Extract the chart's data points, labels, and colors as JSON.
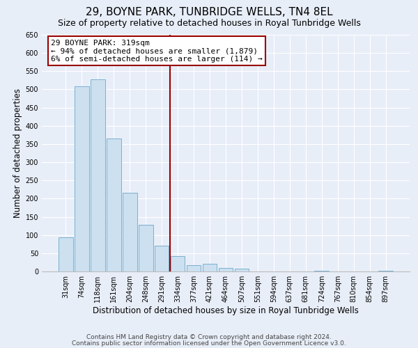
{
  "title": "29, BOYNE PARK, TUNBRIDGE WELLS, TN4 8EL",
  "subtitle": "Size of property relative to detached houses in Royal Tunbridge Wells",
  "xlabel": "Distribution of detached houses by size in Royal Tunbridge Wells",
  "ylabel": "Number of detached properties",
  "bar_labels": [
    "31sqm",
    "74sqm",
    "118sqm",
    "161sqm",
    "204sqm",
    "248sqm",
    "291sqm",
    "334sqm",
    "377sqm",
    "421sqm",
    "464sqm",
    "507sqm",
    "551sqm",
    "594sqm",
    "637sqm",
    "681sqm",
    "724sqm",
    "767sqm",
    "810sqm",
    "854sqm",
    "897sqm"
  ],
  "bar_heights": [
    93,
    508,
    528,
    365,
    216,
    128,
    70,
    43,
    18,
    21,
    10,
    8,
    0,
    0,
    0,
    0,
    2,
    0,
    0,
    0,
    2
  ],
  "bar_color": "#cce0f0",
  "bar_edge_color": "#7ab0d0",
  "ylim": [
    0,
    650
  ],
  "yticks": [
    0,
    50,
    100,
    150,
    200,
    250,
    300,
    350,
    400,
    450,
    500,
    550,
    600,
    650
  ],
  "property_line_x": 7.0,
  "property_line_color": "#990000",
  "annotation_title": "29 BOYNE PARK: 319sqm",
  "annotation_line1": "← 94% of detached houses are smaller (1,879)",
  "annotation_line2": "6% of semi-detached houses are larger (114) →",
  "annotation_box_color": "#ffffff",
  "annotation_box_edge": "#990000",
  "footer1": "Contains HM Land Registry data © Crown copyright and database right 2024.",
  "footer2": "Contains public sector information licensed under the Open Government Licence v3.0.",
  "background_color": "#e8eef8",
  "plot_background": "#e8eef8",
  "grid_color": "#ffffff",
  "title_fontsize": 11,
  "subtitle_fontsize": 9,
  "axis_label_fontsize": 8.5,
  "tick_fontsize": 7,
  "footer_fontsize": 6.5
}
